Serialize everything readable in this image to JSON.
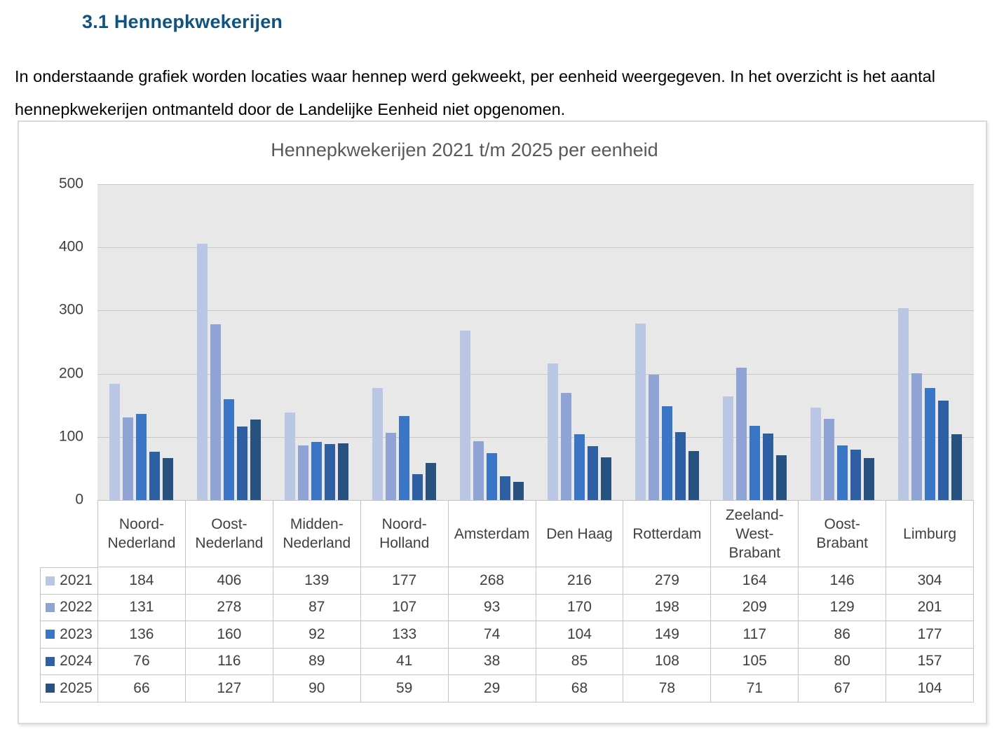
{
  "page": {
    "heading": "3.1 Hennepkwekerijen",
    "intro": "In onderstaande grafiek worden locaties waar hennep werd gekweekt, per eenheid weergegeven. In het overzicht is het aantal hennepkwekerijen ontmanteld door de Landelijke Eenheid niet opgenomen."
  },
  "chart_data": {
    "type": "bar",
    "title": "Hennepkwekerijen 2021 t/m 2025 per eenheid",
    "categories": [
      "Noord-Nederland",
      "Oost-Nederland",
      "Midden-Nederland",
      "Noord-Holland",
      "Amsterdam",
      "Den Haag",
      "Rotterdam",
      "Zeeland-West-Brabant",
      "Oost-Brabant",
      "Limburg"
    ],
    "category_display_lines": [
      [
        "Noord-",
        "Nederland"
      ],
      [
        "Oost-",
        "Nederland"
      ],
      [
        "Midden-",
        "Nederland"
      ],
      [
        "Noord-",
        "Holland"
      ],
      [
        "Amsterdam"
      ],
      [
        "Den Haag"
      ],
      [
        "Rotterdam"
      ],
      [
        "Zeeland-",
        "West-",
        "Brabant"
      ],
      [
        "Oost-",
        "Brabant"
      ],
      [
        "Limburg"
      ]
    ],
    "series": [
      {
        "name": "2021",
        "color": "#b9c6e4",
        "values": [
          184,
          406,
          139,
          177,
          268,
          216,
          279,
          164,
          146,
          304
        ]
      },
      {
        "name": "2022",
        "color": "#8fa3d4",
        "values": [
          131,
          278,
          87,
          107,
          93,
          170,
          198,
          209,
          129,
          201
        ]
      },
      {
        "name": "2023",
        "color": "#3b76c6",
        "values": [
          136,
          160,
          92,
          133,
          74,
          104,
          149,
          117,
          86,
          177
        ]
      },
      {
        "name": "2024",
        "color": "#2f5fa3",
        "values": [
          76,
          116,
          89,
          41,
          38,
          85,
          108,
          105,
          80,
          157
        ]
      },
      {
        "name": "2025",
        "color": "#27517e",
        "values": [
          66,
          127,
          90,
          59,
          29,
          68,
          78,
          71,
          67,
          104
        ]
      }
    ],
    "xlabel": "",
    "ylabel": "",
    "ylim": [
      0,
      500
    ],
    "yticks": [
      0,
      100,
      200,
      300,
      400,
      500
    ],
    "grid": true,
    "legend_position": "table-left",
    "plot_bg_color": "#e9e8e8",
    "gridline_color": "#c9c7c8",
    "heading_color": "#0f5480",
    "title_color": "#595959"
  }
}
